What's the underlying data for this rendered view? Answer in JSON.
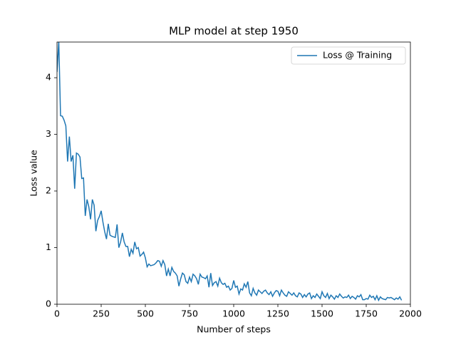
{
  "chart_data": {
    "type": "line",
    "title": "MLP model at step 1950",
    "xlabel": "Number of steps",
    "ylabel": "Loss value",
    "xlim": [
      0,
      2000
    ],
    "ylim": [
      0,
      4.63
    ],
    "xticks": [
      0,
      250,
      500,
      750,
      1000,
      1250,
      1500,
      1750,
      2000
    ],
    "yticks": [
      0,
      1,
      2,
      3,
      4
    ],
    "legend": "upper right",
    "x": [
      0,
      10,
      20,
      30,
      40,
      50,
      60,
      70,
      80,
      90,
      100,
      110,
      120,
      130,
      140,
      150,
      160,
      170,
      180,
      190,
      200,
      210,
      220,
      230,
      240,
      250,
      260,
      270,
      280,
      290,
      300,
      310,
      320,
      330,
      340,
      350,
      360,
      370,
      380,
      390,
      400,
      410,
      420,
      430,
      440,
      450,
      460,
      470,
      480,
      490,
      500,
      510,
      520,
      530,
      540,
      550,
      560,
      570,
      580,
      590,
      600,
      610,
      620,
      630,
      640,
      650,
      660,
      670,
      680,
      690,
      700,
      710,
      720,
      730,
      740,
      750,
      760,
      770,
      780,
      790,
      800,
      810,
      820,
      830,
      840,
      850,
      860,
      870,
      880,
      890,
      900,
      910,
      920,
      930,
      940,
      950,
      960,
      970,
      980,
      990,
      1000,
      1010,
      1020,
      1030,
      1040,
      1050,
      1060,
      1070,
      1080,
      1090,
      1100,
      1110,
      1120,
      1130,
      1140,
      1150,
      1160,
      1170,
      1180,
      1190,
      1200,
      1210,
      1220,
      1230,
      1240,
      1250,
      1260,
      1270,
      1280,
      1290,
      1300,
      1310,
      1320,
      1330,
      1340,
      1350,
      1360,
      1370,
      1380,
      1390,
      1400,
      1410,
      1420,
      1430,
      1440,
      1450,
      1460,
      1470,
      1480,
      1490,
      1500,
      1510,
      1520,
      1530,
      1540,
      1550,
      1560,
      1570,
      1580,
      1590,
      1600,
      1610,
      1620,
      1630,
      1640,
      1650,
      1660,
      1670,
      1680,
      1690,
      1700,
      1710,
      1720,
      1730,
      1740,
      1750,
      1760,
      1770,
      1780,
      1790,
      1800,
      1810,
      1820,
      1830,
      1840,
      1850,
      1860,
      1870,
      1880,
      1890,
      1900,
      1910,
      1920,
      1930,
      1940,
      1950
    ],
    "series": [
      {
        "name": "Loss @ Training",
        "color": "#1f77b4",
        "values": [
          4.1,
          4.65,
          3.33,
          3.32,
          3.25,
          3.15,
          2.52,
          2.96,
          2.52,
          2.63,
          2.04,
          2.67,
          2.65,
          2.6,
          2.22,
          2.23,
          1.56,
          1.85,
          1.72,
          1.5,
          1.85,
          1.75,
          1.29,
          1.48,
          1.55,
          1.65,
          1.45,
          1.28,
          1.15,
          1.42,
          1.22,
          1.2,
          1.19,
          1.18,
          1.41,
          1.0,
          1.1,
          1.26,
          1.1,
          1.02,
          1.02,
          0.84,
          0.97,
          0.9,
          1.1,
          0.98,
          1.0,
          0.85,
          0.88,
          0.92,
          0.82,
          0.66,
          0.71,
          0.68,
          0.69,
          0.7,
          0.73,
          0.77,
          0.76,
          0.67,
          0.77,
          0.7,
          0.5,
          0.62,
          0.5,
          0.65,
          0.58,
          0.55,
          0.5,
          0.32,
          0.45,
          0.55,
          0.52,
          0.4,
          0.37,
          0.48,
          0.4,
          0.53,
          0.5,
          0.45,
          0.35,
          0.53,
          0.48,
          0.47,
          0.45,
          0.5,
          0.3,
          0.55,
          0.33,
          0.38,
          0.4,
          0.32,
          0.46,
          0.38,
          0.35,
          0.37,
          0.3,
          0.32,
          0.25,
          0.28,
          0.42,
          0.3,
          0.32,
          0.18,
          0.27,
          0.25,
          0.36,
          0.3,
          0.4,
          0.2,
          0.15,
          0.28,
          0.2,
          0.16,
          0.25,
          0.22,
          0.19,
          0.23,
          0.25,
          0.2,
          0.17,
          0.22,
          0.14,
          0.2,
          0.24,
          0.23,
          0.15,
          0.25,
          0.2,
          0.16,
          0.14,
          0.22,
          0.19,
          0.16,
          0.2,
          0.15,
          0.13,
          0.2,
          0.18,
          0.12,
          0.17,
          0.13,
          0.18,
          0.2,
          0.1,
          0.15,
          0.12,
          0.18,
          0.14,
          0.1,
          0.22,
          0.15,
          0.12,
          0.19,
          0.1,
          0.16,
          0.13,
          0.09,
          0.15,
          0.12,
          0.18,
          0.14,
          0.11,
          0.13,
          0.12,
          0.16,
          0.1,
          0.14,
          0.12,
          0.09,
          0.15,
          0.13,
          0.17,
          0.08,
          0.08,
          0.1,
          0.09,
          0.16,
          0.12,
          0.14,
          0.08,
          0.15,
          0.07,
          0.13,
          0.1,
          0.09,
          0.08,
          0.12,
          0.11,
          0.12,
          0.1,
          0.08,
          0.11,
          0.09,
          0.13,
          0.07
        ]
      }
    ]
  }
}
